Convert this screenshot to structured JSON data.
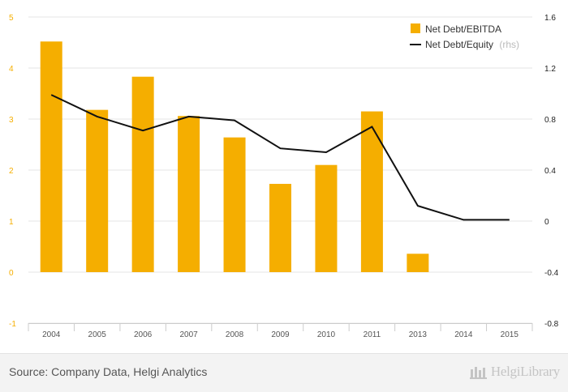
{
  "chart_data": {
    "type": "bar",
    "categories": [
      "2004",
      "2005",
      "2006",
      "2007",
      "2008",
      "2009",
      "2010",
      "2011",
      "2013",
      "2014",
      "2015"
    ],
    "series": [
      {
        "name": "Net Debt/EBITDA",
        "kind": "bar",
        "axis": "left",
        "color": "#f5ae00",
        "values": [
          4.52,
          3.18,
          3.83,
          3.06,
          2.64,
          1.73,
          2.1,
          3.15,
          0.36,
          null,
          null
        ]
      },
      {
        "name": "Net Debt/Equity",
        "suffix": "(rhs)",
        "kind": "line",
        "axis": "right",
        "color": "#111111",
        "values": [
          0.99,
          0.82,
          0.71,
          0.82,
          0.79,
          0.57,
          0.54,
          0.74,
          0.12,
          0.01,
          0.01
        ]
      }
    ],
    "y_left": {
      "ticks": [
        "-1",
        "0",
        "1",
        "2",
        "3",
        "4",
        "5"
      ],
      "ylim": [
        -1,
        5
      ],
      "color": "#f5ae00"
    },
    "y_right": {
      "ticks": [
        "-0.8",
        "-0.4",
        "0",
        "0.4",
        "0.8",
        "1.2",
        "1.6"
      ],
      "ylim": [
        -0.8,
        1.6
      ],
      "color": "#222222"
    },
    "grid": true,
    "legend": "top-right"
  },
  "footer": {
    "source": "Source: Company Data, Helgi Analytics",
    "brand": "HelgiLibrary"
  }
}
